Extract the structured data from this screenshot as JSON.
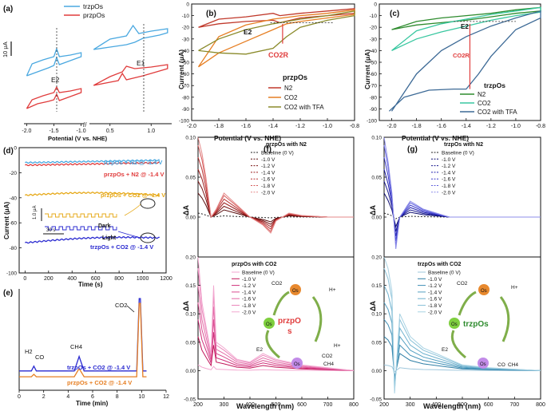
{
  "panels": {
    "a": {
      "letter": "(a)",
      "legend": [
        "trzpOs",
        "przpOs"
      ],
      "colors": [
        "#4aa8e0",
        "#e03c3c"
      ],
      "scale_label": "10 μA",
      "xlabel": "Potential (V vs. NHE)",
      "xticks": [
        "-2.0",
        "-1.5",
        "-1.0",
        "0.5",
        "1.0"
      ],
      "peak_labels": [
        "E2",
        "E1"
      ]
    },
    "b": {
      "letter": "(b)",
      "xlabel": "Potential (V vs. NHE)",
      "ylabel": "Current (μA)",
      "legend_title": "przpOs",
      "legend": [
        "N2",
        "CO2",
        "CO2 with TFA"
      ],
      "annotations": [
        "E2",
        "CO2R"
      ]
    },
    "c": {
      "letter": "(c)",
      "xlabel": "Potential (V vs. NHE)",
      "ylabel": "Current (μA)",
      "legend_title": "trzpOs",
      "legend": [
        "N2",
        "CO2",
        "CO2 with TFA"
      ],
      "annotations": [
        "E2",
        "CO2R"
      ]
    },
    "d": {
      "letter": "(d)",
      "xlabel": "Time (s)",
      "ylabel": "Current (μA)",
      "labels": [
        "trzpOs + N2 @ -1.4 V",
        "przpOs + N2 @ -1.4 V",
        "przpOs + CO2 @ -1.4 V",
        "trzpOs + CO2 @ -1.4 V"
      ],
      "inset": [
        "Dark",
        "Light",
        "1.0 μA",
        "30 s"
      ]
    },
    "e": {
      "letter": "(e)",
      "xlabel": "Time (min)",
      "labels": [
        "trzpOs + CO2 @ -1.4 V",
        "przpOs + CO2 @ -1.4 V"
      ],
      "peaks": [
        "H2",
        "CO",
        "CH4",
        "CO2"
      ]
    },
    "f": {
      "letter": "(f)",
      "xlabel": "Wavelength (nm)",
      "ylabel": "ΔA",
      "top_title": "przpOs with N2",
      "bottom_title": "przpOs with CO2",
      "series_labels": [
        "Baseline (0 V)",
        "-1.0 V",
        "-1.2 V",
        "-1.4 V",
        "-1.6 V",
        "-1.8 V",
        "-2.0 V"
      ],
      "scheme_name": "przpOs",
      "scheme_text": [
        "CO2",
        "H+",
        "E2",
        "CO2",
        "CH4",
        "H+",
        "Os",
        "Os",
        "Os"
      ]
    },
    "g": {
      "letter": "(g)",
      "xlabel": "Wavelength (nm)",
      "ylabel": "ΔA",
      "top_title": "trzpOs with N2",
      "bottom_title": "trzpOs with CO2",
      "series_labels": [
        "Baseline (0 V)",
        "-1.0 V",
        "-1.2 V",
        "-1.4 V",
        "-1.6 V",
        "-1.8 V",
        "-2.0 V"
      ],
      "scheme_name": "trzpOs",
      "scheme_text": [
        "CO2",
        "H+",
        "E2",
        "CO",
        "CH4",
        "Os",
        "Os",
        "Os"
      ]
    }
  },
  "chart_data": [
    {
      "panel": "a",
      "type": "line",
      "title": "",
      "xlabel": "Potential (V vs. NHE)",
      "ylabel": "",
      "note": "two cyclic voltammograms, broken x-axis",
      "series": [
        {
          "name": "trzpOs",
          "segments": [
            {
              "x": [
                -2.0,
                -1.8,
                -1.6,
                -1.5,
                -1.45,
                -1.4,
                -1.2,
                -1.0,
                -1.0,
                -1.2,
                -1.4,
                -1.45,
                -1.5,
                -1.7,
                -1.9,
                -2.0
              ],
              "y": [
                -1.5,
                -1.0,
                -0.5,
                -0.2,
                0.8,
                -0.1,
                0.4,
                0.9,
                1.4,
                1.1,
                0.9,
                1.9,
                0.9,
                0.5,
                0.0,
                -1.5
              ]
            },
            {
              "x": [
                0.3,
                0.5,
                0.7,
                0.8,
                0.9,
                1.1,
                1.2,
                1.2,
                1.0,
                0.85,
                0.78,
                0.7,
                0.5,
                0.3
              ],
              "y": [
                1.8,
                2.1,
                2.4,
                2.7,
                3.2,
                3.6,
                3.9,
                4.4,
                4.1,
                3.8,
                4.8,
                3.5,
                3.1,
                1.8
              ]
            }
          ]
        },
        {
          "name": "przpOs",
          "segments": [
            {
              "x": [
                -2.0,
                -1.8,
                -1.6,
                -1.5,
                -1.45,
                -1.4,
                -1.2,
                -1.0,
                -1.0,
                -1.2,
                -1.4,
                -1.45,
                -1.5,
                -1.7,
                -1.9,
                -2.0
              ],
              "y": [
                -5.6,
                -5.0,
                -4.7,
                -4.5,
                -3.8,
                -4.6,
                -4.1,
                -3.6,
                -3.1,
                -3.4,
                -3.6,
                -2.9,
                -3.6,
                -4.0,
                -4.5,
                -5.6
              ]
            },
            {
              "x": [
                0.3,
                0.5,
                0.6,
                0.65,
                0.7,
                0.9,
                1.0,
                1.2,
                1.2,
                1.0,
                0.8,
                0.7,
                0.65,
                0.5,
                0.3
              ],
              "y": [
                -2.7,
                -2.3,
                -2.1,
                -1.2,
                -2.0,
                -1.5,
                -1.2,
                -0.6,
                -0.1,
                -0.4,
                -0.6,
                -0.3,
                -1.0,
                -1.6,
                -2.7
              ]
            }
          ]
        }
      ]
    },
    {
      "panel": "b",
      "type": "line",
      "xlabel": "Potential (V vs. NHE)",
      "ylabel": "Current (μA)",
      "xlim": [
        -2.0,
        -0.8
      ],
      "ylim": [
        -100,
        0
      ],
      "xticks": [
        -2.0,
        -1.8,
        -1.6,
        -1.4,
        -1.2,
        -1.0,
        -0.8
      ],
      "yticks": [
        -100,
        -90,
        -80,
        -70,
        -60,
        -50,
        -40,
        -30,
        -20,
        -10,
        0
      ],
      "series": [
        {
          "name": "N2",
          "color": "#c0392b",
          "x": [
            -1.95,
            -1.8,
            -1.6,
            -1.4,
            -1.35,
            -1.2,
            -1.0,
            -0.8,
            -0.8,
            -1.0,
            -1.2,
            -1.35,
            -1.4,
            -1.6,
            -1.8,
            -1.95
          ],
          "y": [
            -20,
            -17,
            -15,
            -14,
            -16,
            -12,
            -10,
            -8,
            -4,
            -6,
            -8,
            -10,
            -8,
            -11,
            -13,
            -20
          ]
        },
        {
          "name": "CO2",
          "color": "#e67e22",
          "x": [
            -1.95,
            -1.8,
            -1.6,
            -1.4,
            -1.3,
            -1.2,
            -1.0,
            -0.8,
            -0.8,
            -1.0,
            -1.2,
            -1.4,
            -1.6,
            -1.8,
            -1.95
          ],
          "y": [
            -54,
            -42,
            -32,
            -22,
            -17,
            -15,
            -12,
            -9,
            -5,
            -8,
            -10,
            -13,
            -18,
            -28,
            -54
          ]
        },
        {
          "name": "CO2 with TFA",
          "color": "#8a8a2a",
          "x": [
            -1.95,
            -1.8,
            -1.6,
            -1.4,
            -1.3,
            -1.2,
            -1.0,
            -0.8,
            -0.8,
            -1.0,
            -1.2,
            -1.4,
            -1.6,
            -1.8,
            -1.95
          ],
          "y": [
            -40,
            -42,
            -43,
            -38,
            -28,
            -20,
            -14,
            -10,
            -6,
            -10,
            -13,
            -17,
            -22,
            -30,
            -40
          ]
        }
      ]
    },
    {
      "panel": "c",
      "type": "line",
      "xlabel": "Potential (V vs. NHE)",
      "ylabel": "Current (μA)",
      "xlim": [
        -2.1,
        -0.8
      ],
      "ylim": [
        -100,
        0
      ],
      "xticks": [
        -2.0,
        -1.8,
        -1.6,
        -1.4,
        -1.2,
        -1.0,
        -0.8
      ],
      "yticks": [
        -100,
        -90,
        -80,
        -70,
        -60,
        -50,
        -40,
        -30,
        -20,
        -10,
        0
      ],
      "series": [
        {
          "name": "N2",
          "color": "#2e8b2e",
          "x": [
            -2.0,
            -1.8,
            -1.6,
            -1.4,
            -1.2,
            -1.0,
            -0.8,
            -0.8,
            -1.0,
            -1.2,
            -1.4,
            -1.6,
            -1.8,
            -2.0
          ],
          "y": [
            -22,
            -18,
            -16,
            -14,
            -11,
            -8,
            -6,
            -3,
            -5,
            -8,
            -10,
            -12,
            -15,
            -22
          ]
        },
        {
          "name": "CO2",
          "color": "#39c7a0",
          "x": [
            -2.0,
            -1.8,
            -1.6,
            -1.4,
            -1.2,
            -1.0,
            -0.8,
            -0.8,
            -1.0,
            -1.2,
            -1.4,
            -1.6,
            -1.8,
            -2.0
          ],
          "y": [
            -40,
            -30,
            -24,
            -19,
            -14,
            -10,
            -7,
            -3,
            -6,
            -9,
            -13,
            -17,
            -23,
            -40
          ]
        },
        {
          "name": "CO2 with TFA",
          "color": "#3d6a96",
          "x": [
            -2.02,
            -1.9,
            -1.7,
            -1.5,
            -1.4,
            -1.3,
            -1.2,
            -1.0,
            -0.8,
            -0.8,
            -1.0,
            -1.2,
            -1.4,
            -1.6,
            -1.8,
            -2.0
          ],
          "y": [
            -92,
            -80,
            -74,
            -73,
            -73,
            -60,
            -45,
            -22,
            -12,
            -6,
            -12,
            -19,
            -28,
            -40,
            -60,
            -92
          ]
        }
      ]
    },
    {
      "panel": "d",
      "type": "line",
      "xlabel": "Time (s)",
      "ylabel": "Current (μA)",
      "xlim": [
        -50,
        1200
      ],
      "ylim": [
        -100,
        0
      ],
      "xticks": [
        0,
        200,
        400,
        600,
        800,
        1000,
        1200
      ],
      "yticks": [
        -100,
        -80,
        -60,
        -40,
        -20,
        0
      ],
      "series": [
        {
          "name": "trzpOs + N2 @ -1.4 V",
          "color": "#4aa8e0",
          "x": [
            0,
            600,
            1150
          ],
          "y": [
            -12,
            -11,
            -10
          ]
        },
        {
          "name": "przpOs + N2 @ -1.4 V",
          "color": "#e03c3c",
          "x": [
            0,
            600,
            1150
          ],
          "y": [
            -14,
            -13,
            -12
          ]
        },
        {
          "name": "przpOs + CO2 @ -1.4 V",
          "color": "#e6a817",
          "x": [
            0,
            600,
            1150
          ],
          "y": [
            -38,
            -36,
            -38
          ]
        },
        {
          "name": "trzpOs + CO2 @ -1.4 V",
          "color": "#2a2ad0",
          "x": [
            0,
            600,
            1150
          ],
          "y": [
            -76,
            -72,
            -72
          ]
        }
      ]
    },
    {
      "panel": "e",
      "type": "line",
      "xlabel": "Time (min)",
      "ylabel": "",
      "xlim": [
        0,
        12
      ],
      "xticks": [
        0,
        2,
        4,
        6,
        8,
        10,
        12
      ],
      "series": [
        {
          "name": "trzpOs + CO2 @ -1.4 V",
          "color": "#2a2ad0",
          "x": [
            0,
            1.0,
            1.2,
            1.4,
            2,
            4.5,
            4.9,
            5.3,
            9.6,
            9.8,
            9.9,
            10.1,
            10.4
          ],
          "y": [
            0,
            0,
            1,
            0,
            0,
            0,
            3,
            0,
            0,
            15,
            15,
            0,
            0
          ]
        },
        {
          "name": "przpOs + CO2 @ -1.4 V",
          "color": "#e67e22",
          "x": [
            0,
            1.0,
            1.2,
            1.4,
            2,
            4.5,
            4.9,
            5.3,
            9.6,
            9.8,
            9.9,
            10.1,
            10.4
          ],
          "y": [
            -1.2,
            -1.2,
            -0.7,
            -1.2,
            -1.2,
            -1.2,
            0.5,
            -1.2,
            -1.2,
            14,
            14,
            -1.2,
            -1.2
          ]
        }
      ]
    },
    {
      "panel": "f",
      "type": "line",
      "xlabel": "Wavelength (nm)",
      "ylabel": "ΔA",
      "xlim": [
        200,
        800
      ],
      "xticks": [
        200,
        300,
        400,
        500,
        600,
        700,
        800
      ],
      "top_ylim": [
        -0.05,
        0.1
      ],
      "top_yticks": [
        0.0,
        0.05,
        0.1
      ],
      "bottom_ylim": [
        -0.05,
        0.2
      ],
      "bottom_yticks": [
        -0.05,
        0.0,
        0.05,
        0.1,
        0.15,
        0.2
      ],
      "top_series": [
        {
          "name": "-2.0 V",
          "color": "#8b1a1a",
          "x": [
            200,
            215,
            230,
            250,
            270,
            300,
            350,
            400,
            450,
            480,
            500,
            550,
            600,
            700,
            800
          ],
          "y": [
            0.1,
            0.08,
            0.05,
            0.0,
            0.01,
            0.03,
            0.015,
            0.0,
            -0.01,
            -0.02,
            -0.005,
            0.005,
            0.002,
            0.0,
            0.0
          ]
        }
      ],
      "bottom_series": [
        {
          "name": "-2.0 V",
          "color": "#c2185b",
          "x": [
            200,
            215,
            230,
            250,
            260,
            270,
            300,
            350,
            400,
            450,
            500,
            600,
            700,
            800
          ],
          "y": [
            0.2,
            0.12,
            0.08,
            0.03,
            0.15,
            0.05,
            0.04,
            0.02,
            0.015,
            0.03,
            0.02,
            0.01,
            0.005,
            0.0
          ]
        }
      ]
    },
    {
      "panel": "g",
      "type": "line",
      "xlabel": "Wavelength (nm)",
      "ylabel": "ΔA",
      "xlim": [
        200,
        800
      ],
      "xticks": [
        200,
        300,
        400,
        500,
        600,
        700,
        800
      ],
      "top_ylim": [
        -0.05,
        0.1
      ],
      "top_yticks": [
        0.0,
        0.05,
        0.1
      ],
      "bottom_ylim": [
        -0.05,
        0.2
      ],
      "bottom_yticks": [
        -0.05,
        0.0,
        0.05,
        0.1,
        0.15,
        0.2
      ],
      "top_series": [
        {
          "name": "-2.0 V",
          "color": "#1a1aa8",
          "x": [
            200,
            215,
            230,
            245,
            260,
            300,
            350,
            400,
            450,
            500,
            600,
            800
          ],
          "y": [
            0.1,
            0.07,
            0.03,
            -0.04,
            0.0,
            0.02,
            0.01,
            0.005,
            0.0,
            0.0,
            0.0,
            0.0
          ]
        }
      ],
      "bottom_series": [
        {
          "name": "-2.0 V",
          "color": "#2f7fa6",
          "x": [
            200,
            215,
            230,
            240,
            260,
            300,
            350,
            400,
            450,
            500,
            600,
            800
          ],
          "y": [
            0.2,
            0.18,
            0.14,
            -0.04,
            0.1,
            0.06,
            0.04,
            0.03,
            0.02,
            0.01,
            0.005,
            0.0
          ]
        }
      ]
    }
  ]
}
